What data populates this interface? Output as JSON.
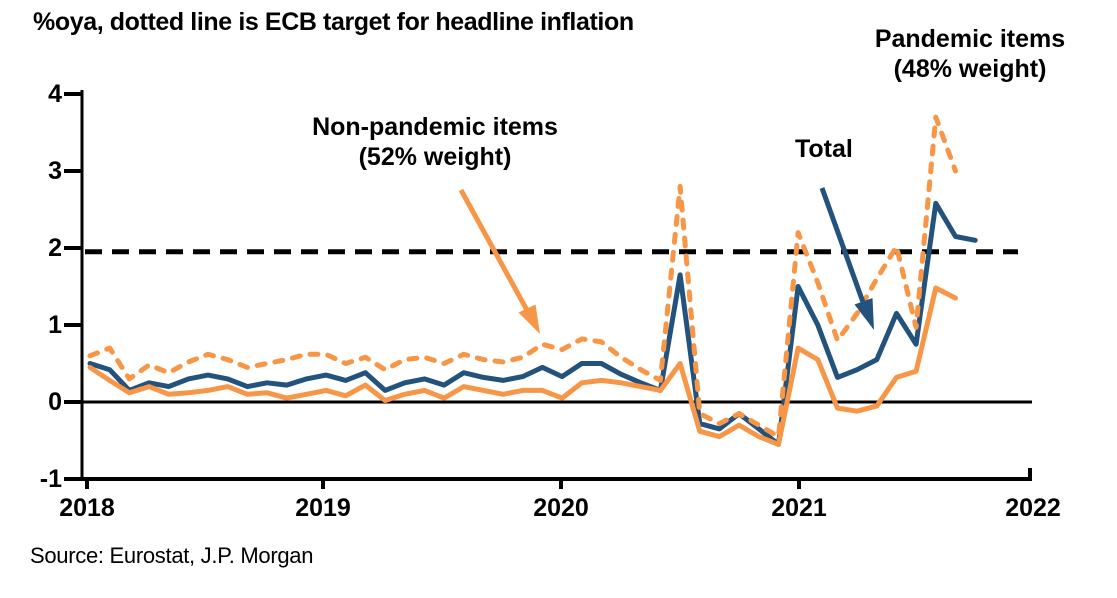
{
  "title": "%oya, dotted line is ECB target for headline inflation",
  "source": "Source: Eurostat, J.P. Morgan",
  "annotations": {
    "pandemic": {
      "line1": "Pandemic items",
      "line2": "(48% weight)"
    },
    "non_pandemic": {
      "line1": "Non-pandemic items",
      "line2": "(52% weight)"
    },
    "total": {
      "label": "Total"
    }
  },
  "axes": {
    "y_ticks": [
      "4",
      "3",
      "2",
      "1",
      "0",
      "-1"
    ],
    "x_ticks": [
      "2018",
      "2019",
      "2020",
      "2021",
      "2022"
    ]
  },
  "chart_data": {
    "type": "line",
    "unit": "%oya",
    "frequency": "monthly",
    "x_start": "2018-01",
    "ylim": [
      -1,
      4
    ],
    "grid": false,
    "legend_position": "annotated-arrows",
    "target_line": {
      "label": "ECB target for headline inflation",
      "value": 1.95,
      "style": "dashed",
      "color": "#000000"
    },
    "series": [
      {
        "name": "Total",
        "color": "#23527c",
        "style": "solid",
        "values": [
          0.5,
          0.42,
          0.15,
          0.25,
          0.2,
          0.3,
          0.35,
          0.3,
          0.2,
          0.25,
          0.22,
          0.3,
          0.35,
          0.28,
          0.38,
          0.15,
          0.25,
          0.3,
          0.22,
          0.38,
          0.32,
          0.28,
          0.33,
          0.45,
          0.33,
          0.5,
          0.5,
          0.36,
          0.25,
          0.15,
          1.65,
          -0.28,
          -0.35,
          -0.15,
          -0.35,
          -0.55,
          1.5,
          1.0,
          0.32,
          0.42,
          0.55,
          1.15,
          0.75,
          2.58,
          2.15,
          2.1
        ]
      },
      {
        "name": "Non-pandemic items (52% weight)",
        "color": "#f79646",
        "style": "solid",
        "values": [
          0.45,
          0.28,
          0.12,
          0.2,
          0.1,
          0.12,
          0.15,
          0.2,
          0.1,
          0.12,
          0.05,
          0.1,
          0.15,
          0.08,
          0.22,
          0.02,
          0.1,
          0.15,
          0.05,
          0.2,
          0.15,
          0.1,
          0.15,
          0.15,
          0.05,
          0.25,
          0.28,
          0.25,
          0.2,
          0.15,
          0.5,
          -0.38,
          -0.45,
          -0.3,
          -0.45,
          -0.55,
          0.7,
          0.55,
          -0.08,
          -0.12,
          -0.05,
          0.32,
          0.4,
          1.48,
          1.35
        ]
      },
      {
        "name": "Pandemic items (48% weight)",
        "color": "#f79646",
        "style": "dashed",
        "values": [
          0.6,
          0.7,
          0.3,
          0.48,
          0.38,
          0.52,
          0.62,
          0.55,
          0.45,
          0.5,
          0.55,
          0.62,
          0.62,
          0.5,
          0.58,
          0.42,
          0.55,
          0.58,
          0.5,
          0.62,
          0.55,
          0.52,
          0.58,
          0.75,
          0.68,
          0.82,
          0.78,
          0.58,
          0.42,
          0.28,
          2.8,
          -0.15,
          -0.28,
          -0.15,
          -0.3,
          -0.45,
          2.2,
          1.55,
          0.8,
          1.15,
          1.6,
          2.02,
          0.97,
          3.7,
          3.0
        ]
      }
    ]
  }
}
